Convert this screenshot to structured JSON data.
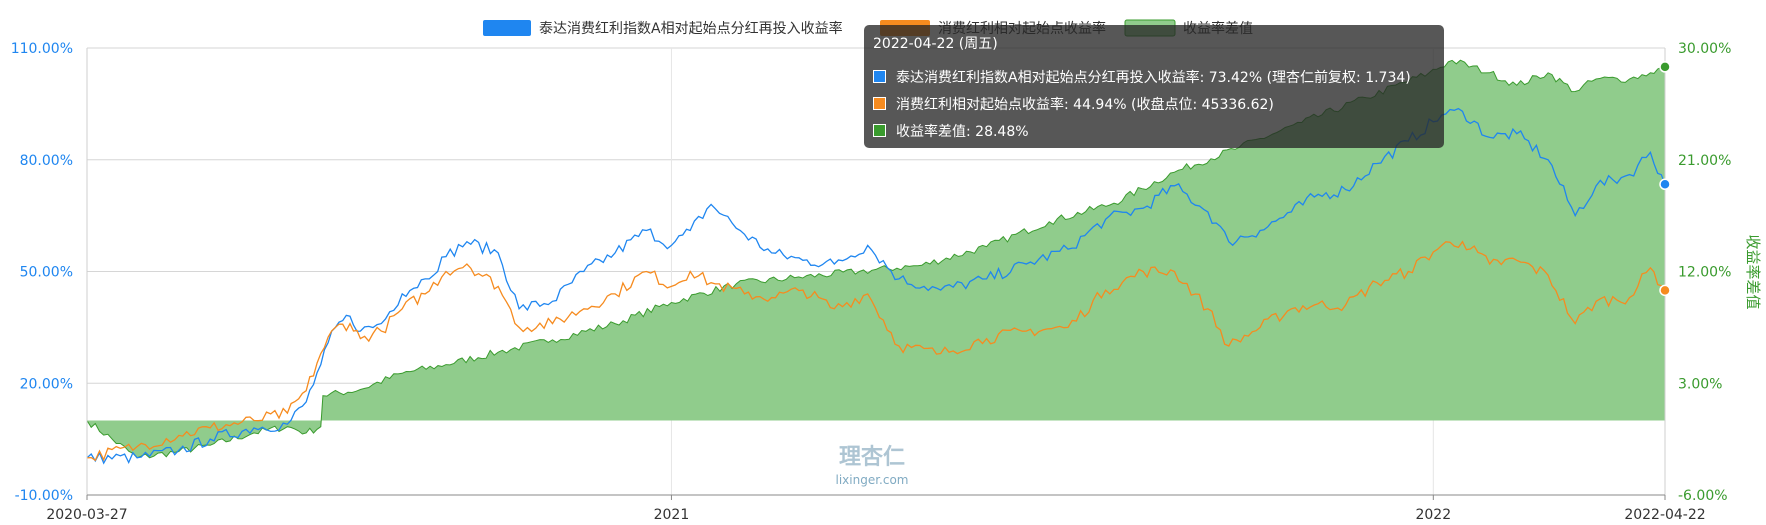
{
  "chart_data": {
    "type": "line",
    "x_start": "2020-03-27",
    "x_end": "2022-04-22",
    "x_ticks": [
      "2020-03-27",
      "2021",
      "2022",
      "2022-04-22"
    ],
    "y_left": {
      "ticks": [
        "110.00%",
        "80.00%",
        "50.00%",
        "20.00%",
        "-10.00%"
      ],
      "ylim": [
        -10,
        110
      ]
    },
    "y_right": {
      "ticks": [
        "30.00%",
        "21.00%",
        "12.00%",
        "3.00%",
        "-6.00%"
      ],
      "ylim": [
        -6,
        30
      ],
      "label": "收益率差值"
    },
    "legend_position": "top-center",
    "series": [
      {
        "name": "泰达消费红利指数A相对起始点分红再投入收益率",
        "color": "#1f86f0",
        "axis": "left",
        "points": [
          [
            "2020-03-27",
            0
          ],
          [
            "2020-04-20",
            0
          ],
          [
            "2020-05-10",
            2
          ],
          [
            "2020-05-25",
            5
          ],
          [
            "2020-06-15",
            8
          ],
          [
            "2020-07-01",
            9
          ],
          [
            "2020-07-10",
            15
          ],
          [
            "2020-07-17",
            25
          ],
          [
            "2020-07-24",
            35
          ],
          [
            "2020-07-31",
            38
          ],
          [
            "2020-08-05",
            34
          ],
          [
            "2020-08-15",
            36
          ],
          [
            "2020-08-25",
            44
          ],
          [
            "2020-09-05",
            48
          ],
          [
            "2020-09-15",
            54
          ],
          [
            "2020-09-25",
            58
          ],
          [
            "2020-10-10",
            55
          ],
          [
            "2020-10-20",
            40
          ],
          [
            "2020-11-05",
            42
          ],
          [
            "2020-11-20",
            50
          ],
          [
            "2020-12-05",
            55
          ],
          [
            "2020-12-20",
            61
          ],
          [
            "2021-01-01",
            57
          ],
          [
            "2021-01-10",
            61
          ],
          [
            "2021-01-20",
            68
          ],
          [
            "2021-02-05",
            60
          ],
          [
            "2021-02-18",
            55
          ],
          [
            "2021-03-05",
            53
          ],
          [
            "2021-03-20",
            52
          ],
          [
            "2021-04-05",
            57
          ],
          [
            "2021-04-20",
            48
          ],
          [
            "2021-05-10",
            45
          ],
          [
            "2021-06-01",
            48
          ],
          [
            "2021-06-20",
            52
          ],
          [
            "2021-07-10",
            56
          ],
          [
            "2021-07-28",
            64
          ],
          [
            "2021-08-15",
            67
          ],
          [
            "2021-08-30",
            73
          ],
          [
            "2021-09-15",
            66
          ],
          [
            "2021-09-25",
            58
          ],
          [
            "2021-10-10",
            61
          ],
          [
            "2021-10-25",
            66
          ],
          [
            "2021-11-05",
            70
          ],
          [
            "2021-11-20",
            72
          ],
          [
            "2021-12-05",
            79
          ],
          [
            "2021-12-20",
            85
          ],
          [
            "2022-01-05",
            92
          ],
          [
            "2022-01-15",
            93
          ],
          [
            "2022-01-28",
            86
          ],
          [
            "2022-02-10",
            87
          ],
          [
            "2022-02-25",
            80
          ],
          [
            "2022-03-10",
            65
          ],
          [
            "2022-03-20",
            73
          ],
          [
            "2022-04-05",
            76
          ],
          [
            "2022-04-15",
            82
          ],
          [
            "2022-04-22",
            73.42
          ]
        ]
      },
      {
        "name": "消费红利相对起始点收益率",
        "color": "#f68b1f",
        "axis": "left",
        "points": [
          [
            "2020-03-27",
            0
          ],
          [
            "2020-04-20",
            3
          ],
          [
            "2020-05-10",
            6
          ],
          [
            "2020-05-25",
            8
          ],
          [
            "2020-06-15",
            10
          ],
          [
            "2020-07-01",
            12
          ],
          [
            "2020-07-10",
            18
          ],
          [
            "2020-07-17",
            28
          ],
          [
            "2020-07-24",
            35
          ],
          [
            "2020-07-31",
            36
          ],
          [
            "2020-08-05",
            32
          ],
          [
            "2020-08-15",
            34
          ],
          [
            "2020-08-25",
            40
          ],
          [
            "2020-09-05",
            44
          ],
          [
            "2020-09-15",
            50
          ],
          [
            "2020-09-25",
            52
          ],
          [
            "2020-10-10",
            46
          ],
          [
            "2020-10-20",
            35
          ],
          [
            "2020-11-05",
            36
          ],
          [
            "2020-11-20",
            40
          ],
          [
            "2020-12-05",
            44
          ],
          [
            "2020-12-20",
            50
          ],
          [
            "2021-01-01",
            46
          ],
          [
            "2021-01-10",
            50
          ],
          [
            "2021-01-20",
            47
          ],
          [
            "2021-02-05",
            44
          ],
          [
            "2021-02-18",
            43
          ],
          [
            "2021-03-05",
            45
          ],
          [
            "2021-03-20",
            40
          ],
          [
            "2021-04-05",
            44
          ],
          [
            "2021-04-20",
            30
          ],
          [
            "2021-05-10",
            28
          ],
          [
            "2021-06-01",
            32
          ],
          [
            "2021-06-20",
            34
          ],
          [
            "2021-07-10",
            35
          ],
          [
            "2021-07-28",
            45
          ],
          [
            "2021-08-15",
            50
          ],
          [
            "2021-08-30",
            50
          ],
          [
            "2021-09-15",
            40
          ],
          [
            "2021-09-25",
            30
          ],
          [
            "2021-10-10",
            35
          ],
          [
            "2021-10-25",
            40
          ],
          [
            "2021-11-05",
            41
          ],
          [
            "2021-11-20",
            41
          ],
          [
            "2021-12-05",
            47
          ],
          [
            "2021-12-20",
            50
          ],
          [
            "2022-01-05",
            57
          ],
          [
            "2022-01-15",
            58
          ],
          [
            "2022-01-28",
            52
          ],
          [
            "2022-02-10",
            53
          ],
          [
            "2022-02-25",
            49
          ],
          [
            "2022-03-10",
            36
          ],
          [
            "2022-03-20",
            42
          ],
          [
            "2022-04-05",
            43
          ],
          [
            "2022-04-15",
            51
          ],
          [
            "2022-04-22",
            44.94
          ]
        ]
      },
      {
        "name": "收益率差值",
        "color": "#3a9b2e",
        "fill": "#90cc8c",
        "axis": "right",
        "type": "area",
        "points": [
          [
            "2020-03-27",
            0
          ],
          [
            "2020-04-20",
            -3
          ],
          [
            "2020-05-10",
            -2.5
          ],
          [
            "2020-05-25",
            -2
          ],
          [
            "2020-06-15",
            -1
          ],
          [
            "2020-07-01",
            -0.5
          ],
          [
            "2020-07-10",
            -1
          ],
          [
            "2020-07-17",
            -0.5
          ],
          [
            "2020-07-18",
            2
          ],
          [
            "2020-08-05",
            2.5
          ],
          [
            "2020-08-25",
            3.8
          ],
          [
            "2020-09-15",
            4.5
          ],
          [
            "2020-10-10",
            5.5
          ],
          [
            "2020-11-05",
            6.5
          ],
          [
            "2020-12-05",
            7.8
          ],
          [
            "2021-01-01",
            9.5
          ],
          [
            "2021-02-01",
            11
          ],
          [
            "2021-03-01",
            11.5
          ],
          [
            "2021-04-01",
            12
          ],
          [
            "2021-05-01",
            12.5
          ],
          [
            "2021-06-01",
            14
          ],
          [
            "2021-07-01",
            16
          ],
          [
            "2021-08-01",
            17.5
          ],
          [
            "2021-08-30",
            20
          ],
          [
            "2021-09-30",
            22
          ],
          [
            "2021-10-30",
            24
          ],
          [
            "2021-11-30",
            26
          ],
          [
            "2021-12-30",
            28
          ],
          [
            "2022-01-10",
            29
          ],
          [
            "2022-01-28",
            28
          ],
          [
            "2022-02-10",
            27
          ],
          [
            "2022-02-25",
            28
          ],
          [
            "2022-03-10",
            26.5
          ],
          [
            "2022-03-20",
            27.5
          ],
          [
            "2022-04-05",
            27.5
          ],
          [
            "2022-04-15",
            28
          ],
          [
            "2022-04-22",
            28.48
          ]
        ]
      }
    ],
    "tooltip": {
      "date": "2022-04-22 (周五)",
      "rows": [
        {
          "text": "泰达消费红利指数A相对起始点分红再投入收益率: 73.42% (理杏仁前复权: 1.734)",
          "color": "#1f86f0"
        },
        {
          "text": "消费红利相对起始点收益率: 44.94% (收盘点位: 45336.62)",
          "color": "#f68b1f"
        },
        {
          "text": "收益率差值: 28.48%",
          "color": "#3a9b2e"
        }
      ]
    },
    "watermark": {
      "logo_text": "理杏仁",
      "domain": "lixinger.com"
    }
  }
}
